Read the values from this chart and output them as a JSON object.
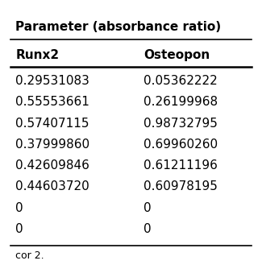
{
  "title": "Parameter (absorbance ratio)",
  "col1_header": "Runx2",
  "col2_header": "Osteopon",
  "col1_values": [
    "0.29531083",
    "0.55553661",
    "0.57407115",
    "0.37999860",
    "0.42609846",
    "0.44603720",
    "0",
    "0"
  ],
  "col2_values": [
    "0.05362222",
    "0.26199968",
    "0.98732795",
    "0.69960260",
    "0.61211196",
    "0.60978195",
    "0",
    "0"
  ],
  "footer": "cor 2.",
  "bg_color": "#ffffff",
  "text_color": "#000000",
  "title_fontsize": 11,
  "header_fontsize": 11,
  "data_fontsize": 11,
  "footer_fontsize": 9
}
